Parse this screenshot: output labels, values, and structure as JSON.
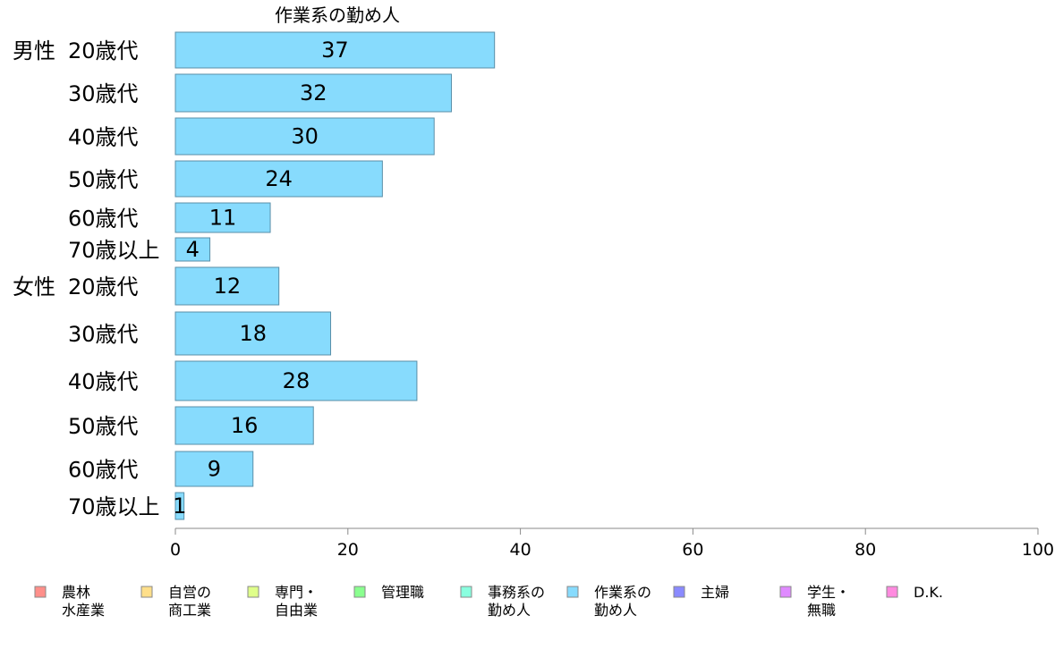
{
  "chart_data": {
    "type": "bar",
    "orientation": "horizontal",
    "title": "作業系の勤め人",
    "groups": [
      {
        "name": "男性",
        "categories": [
          "20歳代",
          "30歳代",
          "40歳代",
          "50歳代",
          "60歳代",
          "70歳以上"
        ],
        "values": [
          37,
          32,
          30,
          24,
          11,
          4
        ]
      },
      {
        "name": "女性",
        "categories": [
          "20歳代",
          "30歳代",
          "40歳代",
          "50歳代",
          "60歳代",
          "70歳以上"
        ],
        "values": [
          12,
          18,
          28,
          16,
          9,
          1
        ]
      }
    ],
    "xlim": [
      0,
      100
    ],
    "xticks": [
      0,
      20,
      40,
      60,
      80,
      100
    ],
    "grid": false,
    "bar_color": "#87dbfd",
    "bar_edge_color": "#5a8fa8",
    "legend_position": "bottom",
    "legend": [
      {
        "lines": [
          "農林",
          "水産業"
        ],
        "color": "#ff8f8a"
      },
      {
        "lines": [
          "自営の",
          "商工業"
        ],
        "color": "#ffdf8a"
      },
      {
        "lines": [
          "専門・",
          "自由業"
        ],
        "color": "#dfff8a"
      },
      {
        "lines": [
          "管理職"
        ],
        "color": "#8aff8f"
      },
      {
        "lines": [
          "事務系の",
          "勤め人"
        ],
        "color": "#8affdf"
      },
      {
        "lines": [
          "作業系の",
          "勤め人"
        ],
        "color": "#87dbfd"
      },
      {
        "lines": [
          "主婦"
        ],
        "color": "#8a8aff"
      },
      {
        "lines": [
          "学生・",
          "無職"
        ],
        "color": "#df8aff"
      },
      {
        "lines": [
          "D.K."
        ],
        "color": "#ff8adf"
      }
    ]
  }
}
